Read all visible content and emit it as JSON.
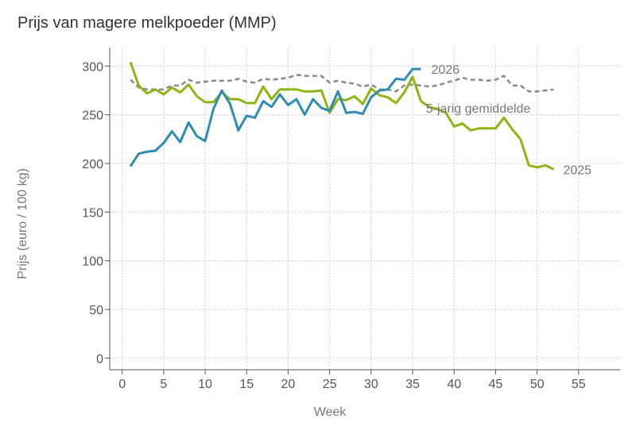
{
  "chart_data": {
    "type": "line",
    "title": "Prijs van magere melkpoeder (MMP)",
    "xlabel": "Week",
    "ylabel": "Prijs (euro / 100 kg)",
    "xlim": [
      -1.5,
      60
    ],
    "ylim": [
      -12,
      319
    ],
    "xticks": [
      0,
      5,
      10,
      15,
      20,
      25,
      30,
      35,
      40,
      45,
      50,
      55
    ],
    "yticks": [
      0,
      50,
      100,
      150,
      200,
      250,
      300
    ],
    "grid": true,
    "legend": "inline labels at series ends",
    "series": [
      {
        "name": "2026",
        "color": "#2e8bb3",
        "dash": "solid",
        "x": [
          1,
          2,
          3,
          4,
          5,
          6,
          7,
          8,
          9,
          10,
          11,
          12,
          13,
          14,
          15,
          16,
          17,
          18,
          19,
          20,
          21,
          22,
          23,
          24,
          25,
          26,
          27,
          28,
          29,
          30,
          31,
          32,
          33,
          34,
          35,
          36
        ],
        "y": [
          197,
          210,
          212,
          213,
          221,
          233,
          222,
          242,
          228,
          223,
          256,
          275,
          261,
          234,
          249,
          247,
          264,
          258,
          271,
          260,
          266,
          250,
          266,
          257,
          254,
          274,
          252,
          253,
          251,
          268,
          275,
          276,
          287,
          286,
          297,
          297
        ]
      },
      {
        "name": "2025",
        "color": "#8db511",
        "dash": "solid",
        "x": [
          1,
          2,
          3,
          4,
          5,
          6,
          7,
          8,
          9,
          10,
          11,
          12,
          13,
          14,
          15,
          16,
          17,
          18,
          19,
          20,
          21,
          22,
          23,
          24,
          25,
          26,
          27,
          28,
          29,
          30,
          31,
          32,
          33,
          34,
          35,
          36,
          37,
          38,
          39,
          40,
          41,
          42,
          43,
          44,
          45,
          46,
          47,
          48,
          49,
          50,
          51,
          52
        ],
        "y": [
          304,
          280,
          272,
          276,
          271,
          278,
          273,
          281,
          269,
          263,
          263,
          273,
          266,
          266,
          262,
          262,
          279,
          266,
          276,
          276,
          276,
          274,
          274,
          275,
          252,
          266,
          265,
          269,
          261,
          277,
          270,
          268,
          262,
          273,
          289,
          264,
          258,
          256,
          252,
          238,
          241,
          234,
          236,
          236,
          236,
          247,
          235,
          225,
          198,
          196,
          198,
          194
        ]
      },
      {
        "name": "5-jarig gemiddelde",
        "color": "#8a8a8a",
        "dash": "dashed",
        "x": [
          1,
          2,
          3,
          4,
          5,
          6,
          7,
          8,
          9,
          10,
          11,
          12,
          13,
          14,
          15,
          16,
          17,
          18,
          19,
          20,
          21,
          22,
          23,
          24,
          25,
          26,
          27,
          28,
          29,
          30,
          31,
          32,
          33,
          34,
          35,
          36,
          37,
          38,
          39,
          40,
          41,
          42,
          43,
          44,
          45,
          46,
          47,
          48,
          49,
          50,
          51,
          52
        ],
        "y": [
          286,
          278,
          276,
          276,
          276,
          280,
          280,
          286,
          283,
          284,
          285,
          285,
          285,
          287,
          284,
          283,
          287,
          286,
          287,
          288,
          291,
          290,
          290,
          290,
          283,
          285,
          283,
          282,
          279,
          281,
          276,
          276,
          274,
          280,
          281,
          280,
          279,
          280,
          283,
          285,
          288,
          286,
          286,
          285,
          286,
          290,
          280,
          280,
          274,
          274,
          275,
          276
        ]
      }
    ]
  }
}
